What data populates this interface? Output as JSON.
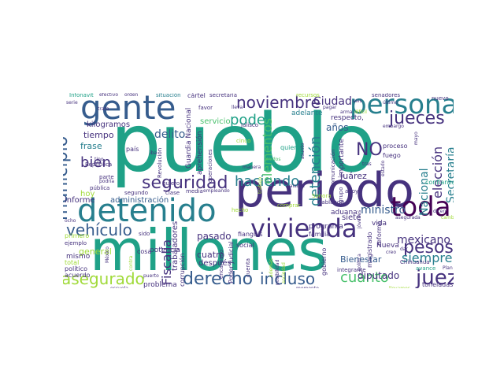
{
  "palette": {
    "dark_purple": "#46327e",
    "blue": "#365c8d",
    "teal": "#277f8e",
    "green": "#1fa187",
    "lightgreen": "#4ac16d",
    "lime": "#a0da39",
    "yellow": "#fde725",
    "navy": "#440154"
  },
  "words": {
    "pueblo": "pueblo",
    "periodo": "periodo",
    "millones": "millones",
    "detenido": "detenido",
    "gente": "gente",
    "persona": "persona",
    "vivienda": "vivienda",
    "toda": "toda",
    "noviembre": "noviembre",
    "municipio": "municipio",
    "seguridad": "seguridad",
    "haciendo": "haciendo",
    "derecho": "derecho",
    "incluso": "incluso",
    "cuanto": "cuanto",
    "asegurado": "asegurado",
    "juez": "juez",
    "jueces": "jueces",
    "pesos": "pesos",
    "poder": "poder",
    "vehiculo": "vehículo",
    "bien": "bien",
    "fiscalia": "Fiscalía",
    "delito": "delito",
    "ministro": "ministro",
    "mexicano": "mexicano",
    "siempre": "siempre",
    "diputado": "diputado",
    "eleccion": "elección",
    "detencion": "detención",
    "secretaria": "Secretaría",
    "nacional": "Nacional",
    "elementos": "elementos",
    "ciudad": "Ciudad",
    "no": "NO",
    "anos": "años",
    "tiempo": "tiempo",
    "frase": "frase",
    "hoy": "hoy",
    "general": "general",
    "servicio": "servicio",
    "kilogramos": "kilogramos",
    "informe": "informe",
    "administracion": "administración",
    "pasado": "pasado",
    "trabajadores": "trabajadores",
    "cuatro": "cuatro",
    "despues": "después",
    "potencia": "potencia",
    "corrupcion": "corrupción",
    "problema": "problema",
    "guardia": "Guardia Nacional",
    "aprehension": "aprehensión",
    "operaciones": "operaciones",
    "bienestar": "Bienestar",
    "juarez": "Juárez",
    "aduana": "aduana",
    "siete": "siete",
    "programa": "programa",
    "familia": "familia",
    "nueva": "Nueva",
    "vida": "vida",
    "proceso": "proceso",
    "fuego": "fuego",
    "reforma": "reforma",
    "gobierno": "gobierno",
    "importante": "importante",
    "comunicacion": "comunicación",
    "magistrado": "magistrado",
    "respecto": "respecto,",
    "adelante": "adelante",
    "cartel": "cártel",
    "senadores": "senadores",
    "nuevo": "nuevo",
    "confianza": "confianza",
    "avance": "avance",
    "toneladas": "toneladas",
    "chihuahua": "Chihuahua",
    "integrante": "integrante",
    "mismo": "mismo",
    "total": "total",
    "acuerdo": "acuerdo",
    "politico": "político",
    "primero": "primero",
    "ejemplo": "ejemplo",
    "publica": "pública",
    "republica": "República",
    "pais": "país",
    "revolucion": "Revolución",
    "social": "social",
    "fianguis": "fianguis",
    "poder_judicial": "Poder Judicial",
    "encargado": "encargado",
    "infonavit": "Infonavit",
    "efectivo": "efectivo",
    "orden": "orden",
    "situacion": "situación",
    "secretaria_l": "secretaria",
    "recursos": "recursos",
    "ultimo": "último",
    "arma": "arma",
    "dificil": "difícil",
    "seis": "seis",
    "jalisco": "Jalisco",
    "favor": "favor",
    "quiere": "quiere",
    "manera": "manera",
    "unidos": "Unidos",
    "cinco": "cinco",
    "segundo": "segundo",
    "clase": "clase",
    "media": "media",
    "empleando": "empleando",
    "cuenta": "cuenta",
    "hecho": "hecho",
    "sonora": "Sonora",
    "hablando": "hablando",
    "comprar": "comprar",
    "apoyo": "apoyo",
    "grupo": "grupo",
    "sido": "sido",
    "quiero": "quiero",
    "cosa": "cosa",
    "parte": "parte",
    "podria": "podría",
    "tipo": "tipo",
    "ocho": "ocho",
    "serie": "serie",
    "lleva": "lleva",
    "tras": "tras",
    "creo": "creo",
    "mayo": "mayo",
    "plan": "Plan",
    "dicen": "dicen",
    "llevamos": "llevamos",
    "momento": "momento",
    "palabra": "palabra",
    "posibilidad": "posibilidad",
    "escuela": "escuela",
    "puerto": "puerto",
    "asegurada": "asegurada",
    "embargo": "embargo",
    "jovenes": "jóvenes",
    "politica": "política",
    "dar": "dar",
    "pagar": "pagar",
    "iba": "iba",
    "cambio": "cambio",
    "trata": "trata",
    "contra": "contra",
    "sociedad": "sociedad",
    "ademas": "además",
    "trabajo": "trabajo",
    "asunto": "asunto",
    "mexico": "México",
    "estado": "estado"
  }
}
